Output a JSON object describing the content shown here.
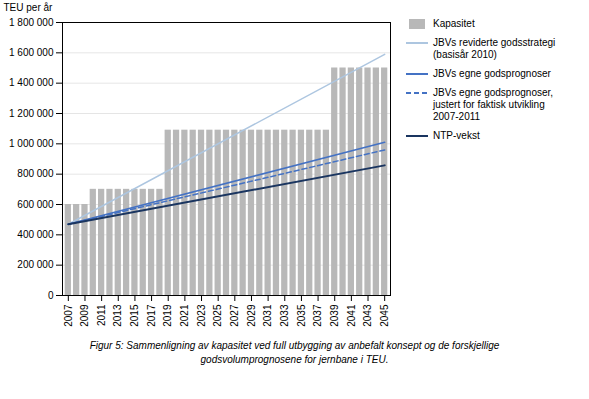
{
  "chart_data": {
    "type": "bar",
    "ylabel": "TEU per år",
    "caption": [
      "Figur 5: Sammenligning av kapasitet ved full utbygging av anbefalt konsept og de forskjellige",
      "godsvolumprognosene for jernbane i TEU."
    ],
    "x": [
      2007,
      2008,
      2009,
      2010,
      2011,
      2012,
      2013,
      2014,
      2015,
      2016,
      2017,
      2018,
      2019,
      2020,
      2021,
      2022,
      2023,
      2024,
      2025,
      2026,
      2027,
      2028,
      2029,
      2030,
      2031,
      2032,
      2033,
      2034,
      2035,
      2036,
      2037,
      2038,
      2039,
      2040,
      2041,
      2042,
      2043,
      2044,
      2045
    ],
    "series": [
      {
        "name": "Kapasitet",
        "type": "bar",
        "color": "#b8b8b8",
        "values": [
          600000,
          600000,
          600000,
          700000,
          700000,
          700000,
          700000,
          700000,
          700000,
          700000,
          700000,
          700000,
          1090000,
          1090000,
          1090000,
          1090000,
          1090000,
          1090000,
          1090000,
          1090000,
          1090000,
          1090000,
          1090000,
          1090000,
          1090000,
          1090000,
          1090000,
          1090000,
          1090000,
          1090000,
          1090000,
          1090000,
          1500000,
          1500000,
          1500000,
          1500000,
          1500000,
          1500000,
          1500000
        ]
      },
      {
        "name": "JBVs reviderte godsstrategi\n(basisår 2010)",
        "type": "line",
        "color": "#adc6e0",
        "line_style": "solid",
        "x": [
          2007,
          2045
        ],
        "values": [
          470000,
          1590000
        ]
      },
      {
        "name": "JBVs egne godsprognoser",
        "type": "line",
        "color": "#4472c4",
        "line_style": "solid",
        "x": [
          2007,
          2045
        ],
        "values": [
          470000,
          1010000
        ]
      },
      {
        "name": "JBVs egne godsprognoser,\njustert for faktisk utvikling\n2007-2011",
        "type": "line",
        "color": "#4472c4",
        "line_style": "dashed",
        "x": [
          2007,
          2045
        ],
        "values": [
          470000,
          960000
        ]
      },
      {
        "name": "NTP-vekst",
        "type": "line",
        "color": "#1a3560",
        "line_style": "solid",
        "x": [
          2007,
          2045
        ],
        "values": [
          470000,
          858000
        ]
      }
    ],
    "xlim": [
      2006.3,
      2045.7
    ],
    "xticks": [
      2007,
      2009,
      2011,
      2013,
      2015,
      2017,
      2019,
      2021,
      2023,
      2025,
      2027,
      2029,
      2031,
      2033,
      2035,
      2037,
      2039,
      2041,
      2043,
      2045
    ],
    "ylim": [
      0,
      1800000
    ],
    "yticks": [
      0,
      {
        "value": 200000,
        "label": "200 000"
      },
      {
        "value": 400000,
        "label": "400 000"
      },
      {
        "value": 600000,
        "label": "600 000"
      },
      {
        "value": 800000,
        "label": "800 000"
      },
      {
        "value": 1000000,
        "label": "1 000 000"
      },
      {
        "value": 1200000,
        "label": "1 200 000"
      },
      {
        "value": 1400000,
        "label": "1 400 000"
      },
      {
        "value": 1600000,
        "label": "1 600 000"
      },
      {
        "value": 1800000,
        "label": "1 800 000"
      }
    ],
    "grid": true,
    "legend": "right"
  }
}
